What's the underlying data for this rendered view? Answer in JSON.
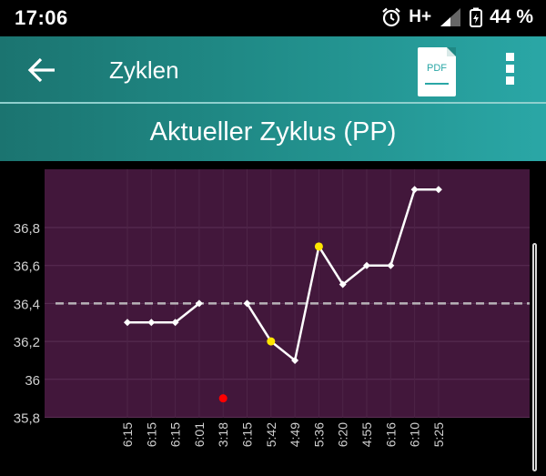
{
  "status": {
    "time": "17:06",
    "network": "H+",
    "battery": "44 %"
  },
  "appbar": {
    "title": "Zyklen",
    "pdf_label": "PDF"
  },
  "subheader": {
    "title": "Aktueller Zyklus (PP)"
  },
  "colors": {
    "plot_bg": "#42173b",
    "line": "#ffffff",
    "marker_yellow": "#ffe600",
    "marker_red": "#ff0000",
    "baseline": "#b8b3b8",
    "accent": "#2aa7a6"
  },
  "chart_data": {
    "type": "line",
    "title": "Aktueller Zyklus (PP)",
    "xlabel": "",
    "ylabel": "",
    "ylim": [
      35.8,
      37.0
    ],
    "yticks": [
      "35,8",
      "36",
      "36,2",
      "36,4",
      "36,6",
      "36,8"
    ],
    "categories": [
      "6:15",
      "6:15",
      "6:15",
      "6:01",
      "3:18",
      "6:15",
      "5:42",
      "4:49",
      "5:36",
      "6:20",
      "4:55",
      "6:16",
      "6:10",
      "5:25"
    ],
    "series": [
      {
        "values": [
          36.3,
          36.3,
          36.3,
          36.4,
          null,
          36.4,
          36.2,
          36.1,
          36.7,
          36.5,
          36.6,
          36.6,
          37.0,
          37.0
        ]
      }
    ],
    "highlighted_points": [
      {
        "index": 6,
        "value": 36.2,
        "color": "yellow"
      },
      {
        "index": 8,
        "value": 36.7,
        "color": "yellow"
      }
    ],
    "excluded_points": [
      {
        "index": 4,
        "value": 35.9,
        "color": "red"
      }
    ],
    "baseline": 36.4,
    "grid": true
  }
}
